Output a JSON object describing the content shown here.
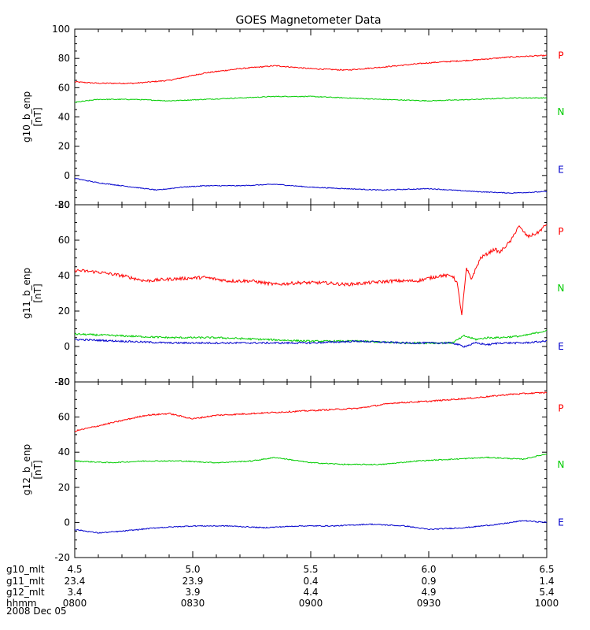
{
  "chart_data": {
    "type": "line",
    "title": "GOES Magnetometer Data",
    "colors": {
      "P": "#ff0000",
      "N": "#00cc00",
      "E": "#0000cc"
    },
    "legend_labels": [
      "P",
      "N",
      "E"
    ],
    "xaxis": {
      "time_hours": [
        8.0,
        8.5,
        9.0,
        9.5,
        10.0
      ],
      "rows": [
        {
          "name": "g10_mlt",
          "values": [
            "4.5",
            "5.0",
            "5.5",
            "6.0",
            "6.5"
          ]
        },
        {
          "name": "g11_mlt",
          "values": [
            "23.4",
            "23.9",
            "0.4",
            "0.9",
            "1.4"
          ]
        },
        {
          "name": "g12_mlt",
          "values": [
            "3.4",
            "3.9",
            "4.4",
            "4.9",
            "5.4"
          ]
        },
        {
          "name": "hhmm",
          "values": [
            "0800",
            "0830",
            "0900",
            "0930",
            "1000"
          ]
        }
      ],
      "date": "2008 Dec 05"
    },
    "panels": [
      {
        "ylabel": "g10_b_enp",
        "yunit": "[nT]",
        "ylim": [
          -20,
          100
        ],
        "yticks": [
          -20,
          0,
          20,
          40,
          60,
          80,
          100
        ],
        "series": [
          {
            "name": "P",
            "x": [
              8.0,
              8.1,
              8.25,
              8.4,
              8.55,
              8.7,
              8.85,
              9.0,
              9.15,
              9.3,
              9.5,
              9.7,
              9.85,
              10.0
            ],
            "values": [
              64,
              63,
              63,
              65,
              70,
              73,
              75,
              73,
              72,
              74,
              77,
              79,
              81,
              82
            ],
            "noise": 0.4
          },
          {
            "name": "N",
            "x": [
              8.0,
              8.1,
              8.25,
              8.4,
              8.55,
              8.7,
              8.85,
              9.0,
              9.15,
              9.3,
              9.5,
              9.7,
              9.85,
              10.0
            ],
            "values": [
              50,
              52,
              52,
              51,
              52,
              53,
              54,
              54,
              53,
              52,
              51,
              52,
              53,
              53
            ],
            "noise": 0.3
          },
          {
            "name": "E",
            "x": [
              8.0,
              8.1,
              8.25,
              8.35,
              8.45,
              8.55,
              8.7,
              8.85,
              9.0,
              9.15,
              9.3,
              9.5,
              9.7,
              9.85,
              10.0
            ],
            "values": [
              -2,
              -5,
              -8,
              -10,
              -8,
              -7,
              -7,
              -6,
              -8,
              -9,
              -10,
              -9,
              -11,
              -12,
              -11
            ],
            "noise": 0.3
          }
        ]
      },
      {
        "ylabel": "g11_b_enp",
        "yunit": "[nT]",
        "ylim": [
          -20,
          80
        ],
        "yticks": [
          -20,
          0,
          20,
          40,
          60,
          80
        ],
        "series": [
          {
            "name": "P",
            "x": [
              8.0,
              8.1,
              8.2,
              8.3,
              8.4,
              8.55,
              8.65,
              8.75,
              8.85,
              8.95,
              9.05,
              9.15,
              9.25,
              9.35,
              9.45,
              9.55,
              9.6,
              9.62,
              9.64,
              9.66,
              9.68,
              9.72,
              9.78,
              9.8,
              9.85,
              9.88,
              9.92,
              9.96,
              10.0
            ],
            "values": [
              43,
              42,
              40,
              37,
              38,
              39,
              37,
              37,
              35,
              36,
              36,
              35,
              36,
              37,
              37,
              40,
              40,
              36,
              18,
              44,
              38,
              50,
              55,
              53,
              60,
              68,
              62,
              64,
              69
            ],
            "noise": 0.9
          },
          {
            "name": "N",
            "x": [
              8.0,
              8.2,
              8.4,
              8.6,
              8.8,
              9.0,
              9.2,
              9.4,
              9.55,
              9.6,
              9.65,
              9.7,
              9.75,
              9.8,
              9.9,
              10.0
            ],
            "values": [
              7,
              6,
              5,
              5,
              4,
              3,
              3,
              2,
              2,
              2,
              6,
              4,
              5,
              5,
              6,
              9
            ],
            "noise": 0.5
          },
          {
            "name": "E",
            "x": [
              8.0,
              8.2,
              8.4,
              8.6,
              8.8,
              9.0,
              9.2,
              9.4,
              9.55,
              9.6,
              9.65,
              9.7,
              9.75,
              9.8,
              9.9,
              10.0
            ],
            "values": [
              4,
              3,
              2,
              2,
              2,
              2,
              3,
              2,
              2,
              2,
              0,
              2,
              1,
              2,
              2,
              3
            ],
            "noise": 0.5
          }
        ]
      },
      {
        "ylabel": "g12_b_enp",
        "yunit": "[nT]",
        "ylim": [
          -20,
          80
        ],
        "yticks": [
          -20,
          0,
          20,
          40,
          60,
          80
        ],
        "series": [
          {
            "name": "P",
            "x": [
              8.0,
              8.1,
              8.2,
              8.3,
              8.4,
              8.5,
              8.6,
              8.75,
              8.9,
              9.05,
              9.2,
              9.35,
              9.5,
              9.7,
              9.85,
              10.0
            ],
            "values": [
              52,
              55,
              58,
              61,
              62,
              59,
              61,
              62,
              63,
              64,
              65,
              68,
              69,
              71,
              73,
              74
            ],
            "noise": 0.4
          },
          {
            "name": "N",
            "x": [
              8.0,
              8.15,
              8.3,
              8.45,
              8.6,
              8.75,
              8.85,
              9.0,
              9.15,
              9.3,
              9.45,
              9.6,
              9.75,
              9.9,
              10.0
            ],
            "values": [
              35,
              34,
              35,
              35,
              34,
              35,
              37,
              34,
              33,
              33,
              35,
              36,
              37,
              36,
              39
            ],
            "noise": 0.3
          },
          {
            "name": "E",
            "x": [
              8.0,
              8.1,
              8.2,
              8.35,
              8.5,
              8.65,
              8.8,
              8.95,
              9.1,
              9.25,
              9.4,
              9.5,
              9.65,
              9.8,
              9.9,
              10.0
            ],
            "values": [
              -4,
              -6,
              -5,
              -3,
              -2,
              -2,
              -3,
              -2,
              -2,
              -1,
              -2,
              -4,
              -3,
              -1,
              1,
              0
            ],
            "noise": 0.3
          }
        ]
      }
    ]
  }
}
